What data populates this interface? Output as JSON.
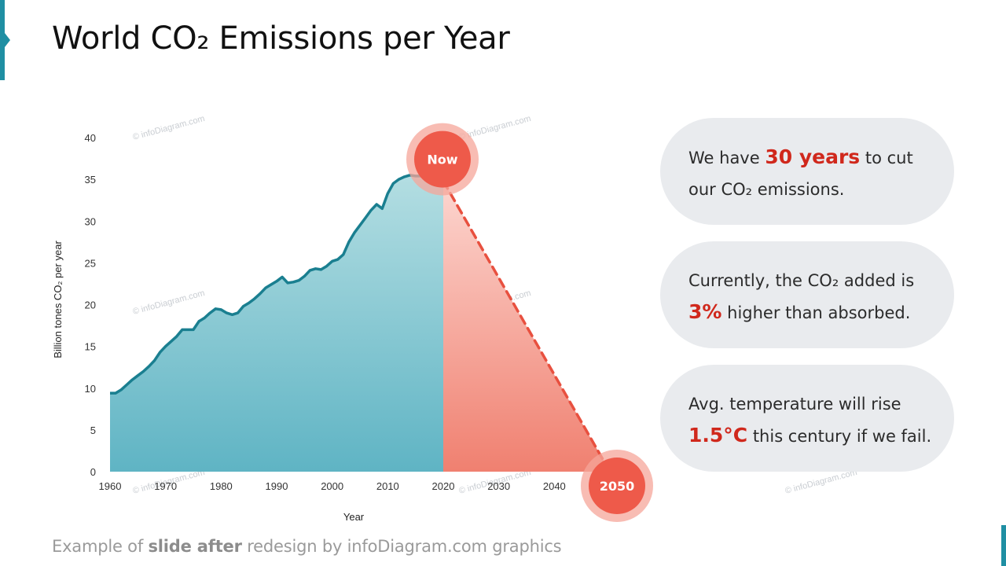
{
  "title": "World CO₂ Emissions per Year",
  "facts": [
    {
      "pre": "We have ",
      "highlight": "30 years",
      "post": " to cut our CO₂ emissions."
    },
    {
      "pre": "Currently, the CO₂ added is ",
      "highlight": "3%",
      "post": " higher than absorbed."
    },
    {
      "pre": "Avg. temperature will rise ",
      "highlight": "1.5°C",
      "post": " this century if we fail."
    }
  ],
  "footer": {
    "pre": "Example of ",
    "bold": "slide after",
    "post": " redesign by infoDiagram.com graphics"
  },
  "watermark_text": "© infoDiagram.com",
  "colors": {
    "accent": "#1f8fa3",
    "history_line": "#1a7f90",
    "history_fill_top": "#b6dfe3",
    "history_fill_bottom": "#5fb4c4",
    "projection": "#f08070",
    "highlight": "#d0281c",
    "card_bg": "#e9ebee"
  },
  "chart_data": {
    "type": "area",
    "xlabel": "Year",
    "ylabel": "Billion tones CO₂ per year",
    "xlim": [
      1960,
      2050
    ],
    "ylim": [
      0,
      40
    ],
    "xticks": [
      1960,
      1970,
      1980,
      1990,
      2000,
      2010,
      2020,
      2030,
      2040
    ],
    "yticks": [
      0,
      5,
      10,
      15,
      20,
      25,
      30,
      35,
      40
    ],
    "grid": false,
    "series": [
      {
        "kind": "historical",
        "x": [
          1960,
          1961,
          1962,
          1963,
          1964,
          1965,
          1966,
          1967,
          1968,
          1969,
          1970,
          1971,
          1972,
          1973,
          1974,
          1975,
          1976,
          1977,
          1978,
          1979,
          1980,
          1981,
          1982,
          1983,
          1984,
          1985,
          1986,
          1987,
          1988,
          1989,
          1990,
          1991,
          1992,
          1993,
          1994,
          1995,
          1996,
          1997,
          1998,
          1999,
          2000,
          2001,
          2002,
          2003,
          2004,
          2005,
          2006,
          2007,
          2008,
          2009,
          2010,
          2011,
          2012,
          2013,
          2014,
          2015,
          2016,
          2017,
          2018,
          2019,
          2020
        ],
        "y": [
          9.4,
          9.4,
          9.8,
          10.4,
          11.0,
          11.5,
          12.0,
          12.6,
          13.3,
          14.3,
          15.0,
          15.6,
          16.2,
          17.0,
          17.0,
          17.0,
          18.0,
          18.4,
          19.0,
          19.5,
          19.4,
          19.0,
          18.8,
          19.0,
          19.8,
          20.2,
          20.7,
          21.3,
          22.0,
          22.4,
          22.8,
          23.3,
          22.6,
          22.7,
          22.9,
          23.4,
          24.1,
          24.3,
          24.2,
          24.6,
          25.2,
          25.4,
          26.0,
          27.5,
          28.6,
          29.5,
          30.4,
          31.3,
          32.0,
          31.5,
          33.3,
          34.5,
          35.0,
          35.3,
          35.5,
          35.4,
          35.4,
          35.7,
          36.6,
          36.4,
          34.8
        ]
      },
      {
        "kind": "projection",
        "x": [
          2020,
          2050
        ],
        "y": [
          34.8,
          0
        ]
      }
    ],
    "annotations": [
      {
        "label": "Now",
        "x": 2020,
        "y": 37.5
      },
      {
        "label": "2050",
        "x": 2050,
        "y": 0
      }
    ]
  }
}
